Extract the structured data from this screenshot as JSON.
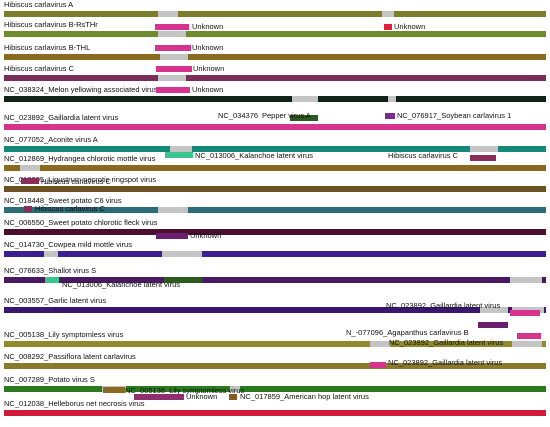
{
  "rows": [
    {
      "label": "Hibiscus carlavirus A",
      "color": "#7a7d2a"
    },
    {
      "label": "Hibiscus carlavirus B-RsTHr",
      "color": "#6e8b2e"
    },
    {
      "label": "Hibiscus carlavirus B-THL",
      "color": "#8a6a1f"
    },
    {
      "label": "Hibiscus carlavirus C",
      "color": "#7b2d5a"
    },
    {
      "label": "NC_038324_Melon yellowing associated virus",
      "color": "#0f2418"
    },
    {
      "label": "NC_023892_Gaillardia latent virus",
      "color": "#d6338f"
    },
    {
      "label": "NC_077052_Aconite virus A",
      "color": "#14897a"
    },
    {
      "label": "NC_012869_Hydrangea chlorotic mottle virus",
      "color": "#8a6a1f"
    },
    {
      "label": "NC_010305_Ligustrum necrotic ringspot virus",
      "color": "#6b5220"
    },
    {
      "label": "NC_018448_Sweet potato C6 virus",
      "color": "#2a6c77"
    },
    {
      "label": "NC_006550_Sweet potato chlorotic fleck virus",
      "color": "#4a0f2c"
    },
    {
      "label": "NC_014730_Cowpea mild mottle virus",
      "color": "#3a208f"
    },
    {
      "label": "NC_076633_Shallot virus S",
      "color": "#4a1a5e"
    },
    {
      "label": "NC_003557_Garlic latent virus",
      "color": "#3a1670"
    },
    {
      "label": "NC_005138_Lily symptomless virus",
      "color": "#8f8a2a"
    },
    {
      "label": "NC_008292_Passiflora latent carlavirus",
      "color": "#8a7a2a"
    },
    {
      "label": "NC_007289_Potato virus S",
      "color": "#2c7a1e"
    },
    {
      "label": "NC_012038_Helleborus net necrosis virus",
      "color": "#d01a3a"
    }
  ],
  "annotations": [
    {
      "row": 0,
      "text": "Unknown",
      "color": "#d6338f"
    },
    {
      "row": 0,
      "text": "Unknown",
      "color": "#e0203a"
    },
    {
      "row": 1,
      "text": "Unknown",
      "color": "#d6338f"
    },
    {
      "row": 2,
      "text": "Unknown",
      "color": "#d6338f"
    },
    {
      "row": 3,
      "text": "Unknown",
      "color": "#d6338f"
    },
    {
      "row": 4,
      "text": "NC_034376",
      "color": "#2c5a1e"
    },
    {
      "row": 4,
      "text": "Pepper virus A",
      "color": "#2c5a1e"
    },
    {
      "row": 4,
      "text": "NC_076917_Soybean carlavirus 1",
      "color": "#7b2d8f"
    },
    {
      "row": 6,
      "text": "NC_013006_Kalanchoe latent virus",
      "color": "#3ac48f"
    },
    {
      "row": 6,
      "text": "Hibiscus carlavirus C",
      "color": "#8b2d5a"
    },
    {
      "row": 7,
      "text": "Hibiscus carlavirus C",
      "color": "#8b2d5a"
    },
    {
      "row": 8,
      "text": "Hibiscus carlavirus C",
      "color": "#8b2d5a"
    },
    {
      "row": 9,
      "text": "Unknown",
      "color": "#6a1f6e"
    },
    {
      "row": 11,
      "text": "NC_013006_Kalanchoe latent virus",
      "color": "#3ac48f"
    },
    {
      "row": 11,
      "text": "",
      "color": "#2c5a1e"
    },
    {
      "row": 12,
      "text": "NC_023892_Gaillardia latent virus",
      "color": "#d6338f"
    },
    {
      "row": 13,
      "text": "N_-077096_Agapanthus carlavirus B",
      "color": "#6a1f6e"
    },
    {
      "row": 13,
      "text": "NC_023892_Gaillardia latent virus",
      "color": "#d6338f"
    },
    {
      "row": 14,
      "text": "NC_023892_Gaillardia latent virus",
      "color": "#d6338f"
    },
    {
      "row": 15,
      "text": "NC_005138_Lily symptomless virus",
      "color": "#8a6a1f"
    },
    {
      "row": 16,
      "text": "Unknown",
      "color": "#8f2d6e"
    },
    {
      "row": 16,
      "text": "NC_017859_American hop latent virus",
      "color": "#8a5a1f"
    }
  ]
}
